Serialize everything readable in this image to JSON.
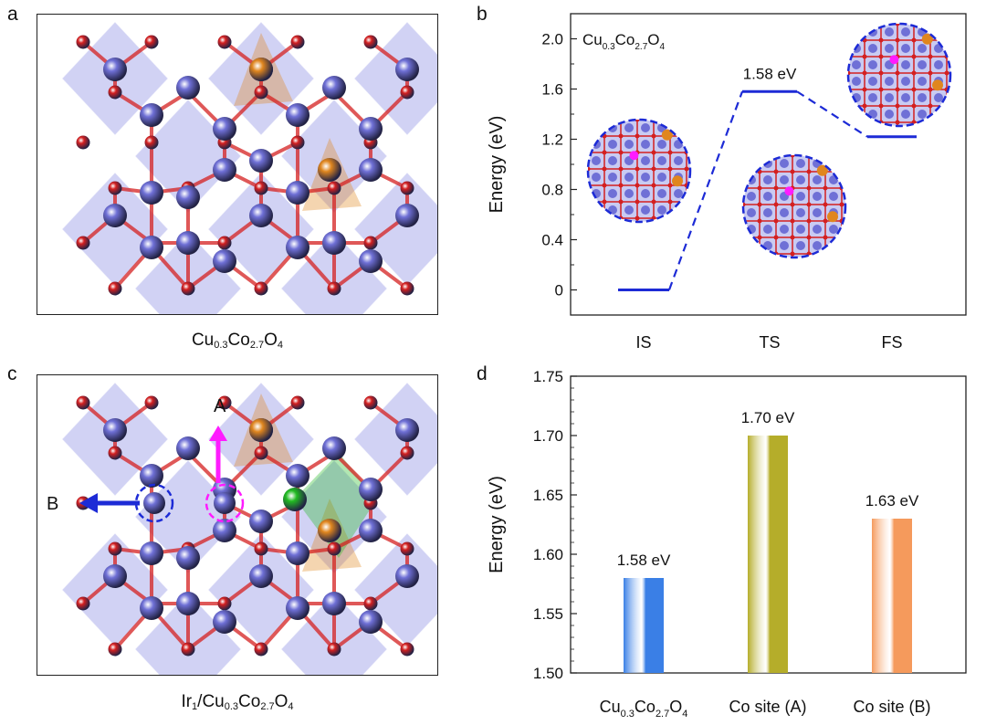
{
  "panels": {
    "a": {
      "label": "a",
      "caption_parts": [
        "Cu",
        "0.3",
        "Co",
        "2.7",
        "O",
        "4"
      ]
    },
    "b": {
      "label": "b"
    },
    "c": {
      "label": "c",
      "caption_parts": [
        "Ir",
        "1",
        "/Cu",
        "0.3",
        "Co",
        "2.7",
        "O",
        "4"
      ],
      "arrow_a": "A",
      "arrow_b": "B"
    },
    "d": {
      "label": "d"
    }
  },
  "colors": {
    "co": "#6f70d6",
    "o": "#d42020",
    "cu": "#e0861e",
    "ir": "#22bb22",
    "poly": "#7b7fe0",
    "line": "#1d2bd6",
    "magenta": "#ff1bff",
    "bar1": "#3a7fe6",
    "bar2": "#b5ad2a",
    "bar3": "#f59a5c"
  },
  "chart_data": [
    {
      "type": "line",
      "title_parts": [
        "Cu",
        "0.3",
        "Co",
        "2.7",
        "O",
        "4"
      ],
      "ylabel": "Energy (eV)",
      "categories": [
        "IS",
        "TS",
        "FS"
      ],
      "values": [
        0,
        1.58,
        1.22
      ],
      "ylim": [
        -0.2,
        2.2
      ],
      "yticks": [
        "0",
        "0.4",
        "0.8",
        "1.2",
        "1.6",
        "2.0"
      ],
      "annotations": [
        "1.58 eV"
      ]
    },
    {
      "type": "bar",
      "ylabel": "Energy (eV)",
      "categories": [
        [
          "Cu",
          "0.3",
          "Co",
          "2.7",
          "O",
          "4"
        ],
        [
          "Co site (A)"
        ],
        [
          "Co site (B)"
        ]
      ],
      "values": [
        1.58,
        1.7,
        1.63
      ],
      "data_labels": [
        "1.58 eV",
        "1.70 eV",
        "1.63 eV"
      ],
      "ylim": [
        1.5,
        1.75
      ],
      "yticks": [
        "1.50",
        "1.55",
        "1.60",
        "1.65",
        "1.70",
        "1.75"
      ]
    }
  ]
}
